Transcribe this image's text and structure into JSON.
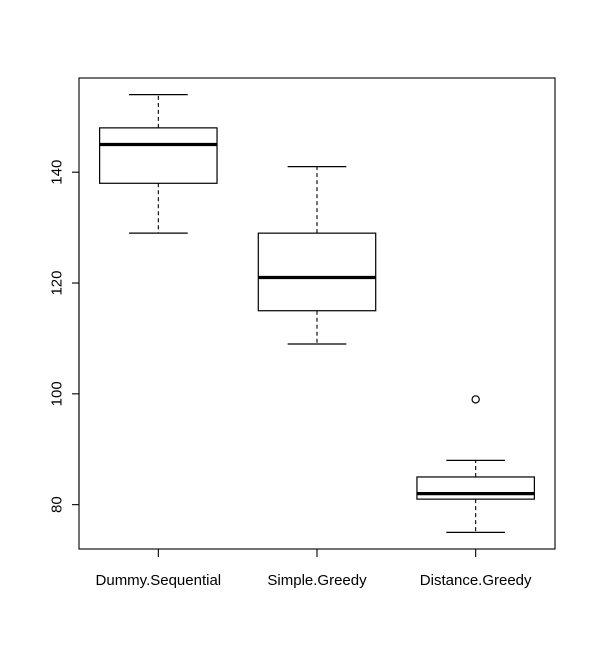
{
  "chart_data": {
    "type": "boxplot",
    "title": "",
    "xlabel": "",
    "ylabel": "",
    "ylim": [
      72,
      157
    ],
    "y_ticks": [
      80,
      100,
      120,
      140
    ],
    "grid": false,
    "categories": [
      "Dummy.Sequential",
      "Simple.Greedy",
      "Distance.Greedy"
    ],
    "boxes": [
      {
        "name": "Dummy.Sequential",
        "whisker_low": 129,
        "q1": 138,
        "median": 145,
        "q3": 148,
        "whisker_high": 154,
        "outliers": []
      },
      {
        "name": "Simple.Greedy",
        "whisker_low": 109,
        "q1": 115,
        "median": 121,
        "q3": 129,
        "whisker_high": 141,
        "outliers": []
      },
      {
        "name": "Distance.Greedy",
        "whisker_low": 75,
        "q1": 81,
        "median": 82,
        "q3": 85,
        "whisker_high": 88,
        "outliers": [
          99
        ]
      }
    ]
  }
}
